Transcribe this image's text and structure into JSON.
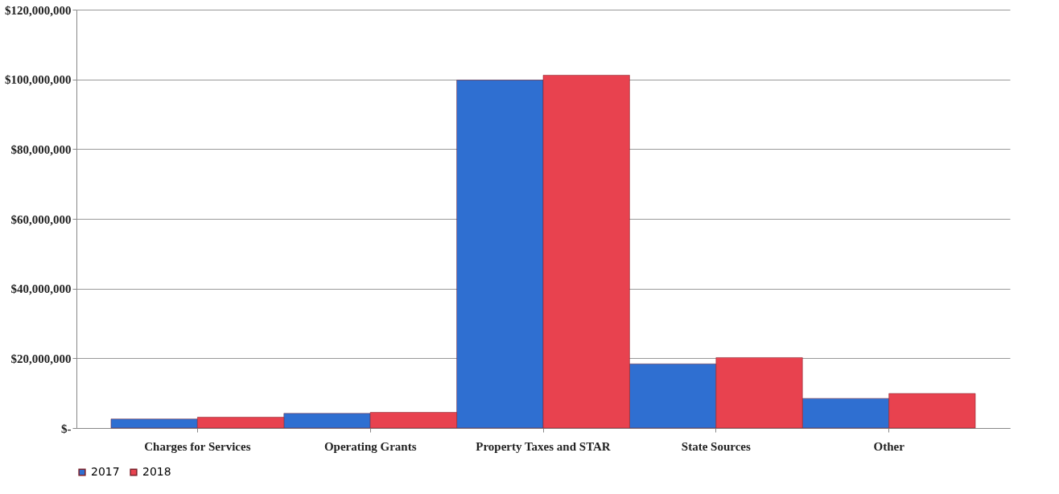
{
  "chart_data": {
    "type": "bar",
    "categories": [
      "Charges for Services",
      "Operating Grants",
      "Property Taxes and STAR",
      "State Sources",
      "Other"
    ],
    "series": [
      {
        "name": "2017",
        "color": "#2f6fd1",
        "values": [
          2600000,
          4200000,
          99800000,
          18400000,
          8500000
        ]
      },
      {
        "name": "2018",
        "color": "#e8424f",
        "values": [
          3100000,
          4500000,
          101200000,
          20200000,
          9900000
        ]
      }
    ],
    "ylim": [
      0,
      120000000
    ],
    "yticks": [
      {
        "value": 0,
        "label": "$-"
      },
      {
        "value": 20000000,
        "label": "$20,000,000"
      },
      {
        "value": 40000000,
        "label": "$40,000,000"
      },
      {
        "value": 60000000,
        "label": "$60,000,000"
      },
      {
        "value": 80000000,
        "label": "$80,000,000"
      },
      {
        "value": 100000000,
        "label": "$100,000,000"
      },
      {
        "value": 120000000,
        "label": "$120,000,000"
      }
    ],
    "grid": "y",
    "legend": "bottom"
  }
}
